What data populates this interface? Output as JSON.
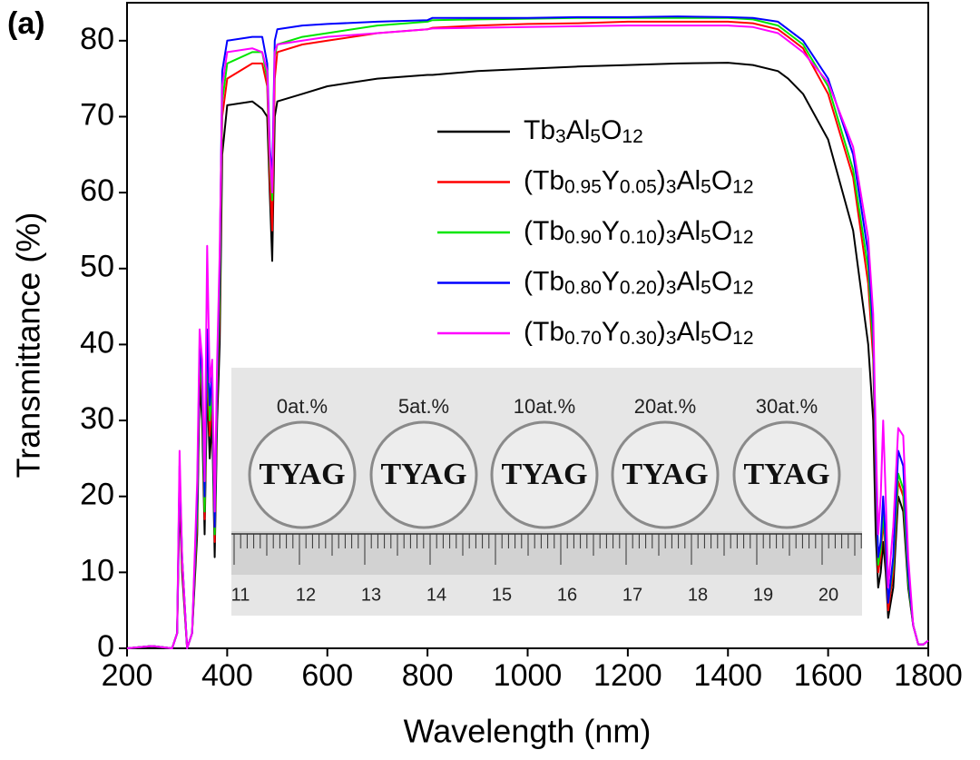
{
  "chart_data": {
    "type": "line",
    "panel_label": "(a)",
    "xlabel": "Wavelength (nm)",
    "ylabel": "Transmittance (%)",
    "xlim": [
      200,
      1800
    ],
    "ylim": [
      0,
      85
    ],
    "xticks": [
      200,
      400,
      600,
      800,
      1000,
      1200,
      1400,
      1600,
      1800
    ],
    "yticks": [
      0,
      10,
      20,
      30,
      40,
      50,
      60,
      70,
      80
    ],
    "x": [
      200,
      250,
      290,
      300,
      305,
      310,
      320,
      330,
      340,
      345,
      350,
      355,
      360,
      365,
      370,
      375,
      380,
      385,
      390,
      400,
      450,
      470,
      480,
      485,
      490,
      495,
      500,
      550,
      600,
      700,
      800,
      810,
      900,
      1000,
      1100,
      1200,
      1300,
      1400,
      1450,
      1500,
      1520,
      1550,
      1600,
      1650,
      1680,
      1690,
      1695,
      1700,
      1705,
      1710,
      1715,
      1720,
      1730,
      1740,
      1750,
      1760,
      1770,
      1780,
      1790,
      1800
    ],
    "series": [
      {
        "name": "Tb3Al5O12",
        "color": "#000000",
        "values": [
          0,
          0.3,
          0,
          2,
          20,
          10,
          0,
          2,
          15,
          35,
          30,
          15,
          35,
          25,
          30,
          12,
          30,
          40,
          65,
          71.5,
          72,
          71,
          70,
          60,
          51,
          70,
          72,
          73,
          74,
          75,
          75.5,
          75.5,
          76,
          76.3,
          76.6,
          76.8,
          77,
          77.1,
          76.8,
          76,
          75,
          73,
          67,
          55,
          40,
          30,
          15,
          8,
          10,
          14,
          10,
          4,
          8,
          20,
          18,
          8,
          3,
          0.5,
          0.5,
          1
        ]
      },
      {
        "name": "(Tb0.95Y0.05)3Al5O12",
        "color": "#ff0000",
        "values": [
          0,
          0.3,
          0,
          2,
          22,
          11,
          0,
          2,
          17,
          38,
          33,
          17,
          38,
          28,
          33,
          14,
          33,
          45,
          70,
          75,
          77,
          77,
          74,
          62,
          55,
          75,
          78.5,
          79.5,
          80,
          81,
          81.5,
          81.7,
          82,
          82.2,
          82.3,
          82.5,
          82.5,
          82.5,
          82.3,
          81.5,
          80.5,
          79,
          73,
          62,
          48,
          38,
          22,
          10,
          12,
          17,
          12,
          5,
          10,
          22,
          20,
          9,
          3,
          0.5,
          0.5,
          1
        ]
      },
      {
        "name": "(Tb0.90Y0.10)3Al5O12",
        "color": "#00e600",
        "values": [
          0,
          0.3,
          0,
          2,
          23,
          12,
          0,
          2,
          18,
          39,
          34,
          18,
          40,
          30,
          34,
          15,
          34,
          47,
          72,
          77,
          78.5,
          78.5,
          75,
          64,
          59,
          78,
          79.5,
          80.5,
          81,
          82,
          82.5,
          82.7,
          82.8,
          82.9,
          83,
          83,
          83,
          83,
          82.8,
          82,
          81,
          79.5,
          74,
          63,
          50,
          40,
          24,
          11,
          13,
          18,
          13,
          6,
          11,
          23,
          21,
          9,
          3,
          0.5,
          0.5,
          1
        ]
      },
      {
        "name": "(Tb0.80Y0.20)3Al5O12",
        "color": "#0000ff",
        "values": [
          0,
          0.3,
          0,
          2,
          24,
          12,
          0,
          2,
          20,
          40,
          36,
          20,
          42,
          32,
          36,
          16,
          36,
          50,
          76,
          80,
          80.5,
          80.5,
          77,
          66,
          62,
          80,
          81.5,
          82,
          82.2,
          82.5,
          82.7,
          83,
          83,
          83,
          83.1,
          83.1,
          83.2,
          83.1,
          83,
          82.5,
          81.5,
          80,
          75,
          65,
          52,
          42,
          25,
          12,
          14,
          20,
          14,
          6,
          12,
          26,
          24,
          10,
          3,
          0.5,
          0.5,
          1
        ]
      },
      {
        "name": "(Tb0.70Y0.30)3Al5O12",
        "color": "#ff00ff",
        "values": [
          0,
          0.3,
          0,
          2,
          26,
          12,
          0,
          2,
          22,
          42,
          38,
          22,
          53,
          35,
          38,
          18,
          38,
          52,
          74,
          78.5,
          79,
          78.5,
          76,
          65,
          60,
          78.5,
          79.5,
          80,
          80.5,
          81,
          81.5,
          81.6,
          81.7,
          81.8,
          81.9,
          82,
          82,
          82,
          81.8,
          81,
          80,
          78.5,
          74.5,
          66,
          54,
          44,
          28,
          15,
          20,
          30,
          20,
          8,
          16,
          29,
          28,
          12,
          3,
          0.5,
          0.5,
          1
        ]
      }
    ],
    "inset": {
      "labels": [
        "0at.%",
        "5at.%",
        "10at.%",
        "20at.%",
        "30at.%"
      ],
      "disk_text": "TYAG",
      "ruler_numbers": [
        "11",
        "12",
        "13",
        "14",
        "15",
        "16",
        "17",
        "18",
        "19",
        "20"
      ]
    }
  }
}
